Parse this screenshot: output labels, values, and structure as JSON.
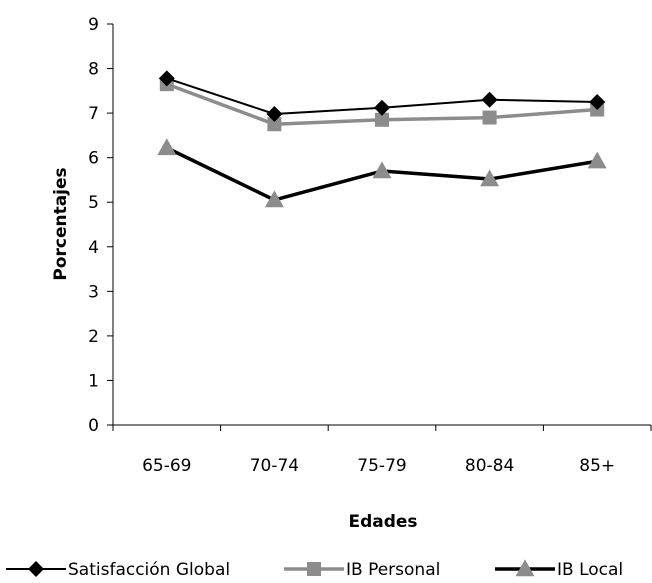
{
  "chart_data": {
    "type": "line",
    "title": "",
    "xlabel": "Edades",
    "ylabel": "Porcentajes",
    "categories": [
      "65-69",
      "70-74",
      "75-79",
      "80-84",
      "85+"
    ],
    "ylim": [
      0,
      9
    ],
    "yticks": [
      0,
      1,
      2,
      3,
      4,
      5,
      6,
      7,
      8,
      9
    ],
    "grid": false,
    "legend_position": "bottom",
    "series": [
      {
        "name": "Satisfacción Global",
        "values": [
          7.78,
          6.98,
          7.12,
          7.3,
          7.25
        ],
        "color": "#000000",
        "marker": "diamond"
      },
      {
        "name": "IB Personal",
        "values": [
          7.65,
          6.75,
          6.85,
          6.9,
          7.08
        ],
        "color": "#8c8c8c",
        "marker": "square"
      },
      {
        "name": "IB Local",
        "values": [
          6.22,
          5.05,
          5.7,
          5.52,
          5.92
        ],
        "color": "#000000",
        "marker": "triangle",
        "marker_color": "#8c8c8c"
      }
    ]
  }
}
